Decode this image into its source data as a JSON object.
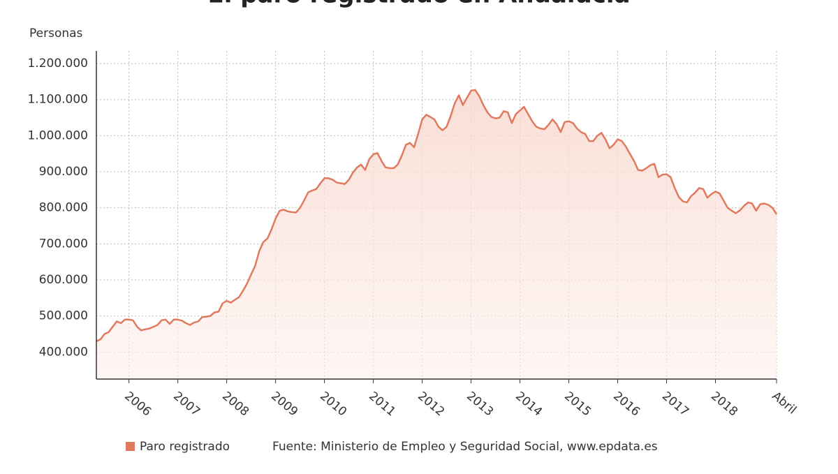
{
  "chart_data": {
    "type": "line",
    "title": "El paro registrado en Andalucía",
    "y_axis_title": "Personas",
    "source": "Fuente: Ministerio de Empleo y Seguridad Social, www.epdata.es",
    "categories": [
      null,
      null,
      null,
      null,
      null,
      null,
      null,
      null,
      "2006",
      null,
      null,
      null,
      null,
      null,
      null,
      null,
      null,
      null,
      null,
      null,
      "2007",
      null,
      null,
      null,
      null,
      null,
      null,
      null,
      null,
      null,
      null,
      null,
      "2008",
      null,
      null,
      null,
      null,
      null,
      null,
      null,
      null,
      null,
      null,
      null,
      "2009",
      null,
      null,
      null,
      null,
      null,
      null,
      null,
      null,
      null,
      null,
      null,
      "2010",
      null,
      null,
      null,
      null,
      null,
      null,
      null,
      null,
      null,
      null,
      null,
      "2011",
      null,
      null,
      null,
      null,
      null,
      null,
      null,
      null,
      null,
      null,
      null,
      "2012",
      null,
      null,
      null,
      null,
      null,
      null,
      null,
      null,
      null,
      null,
      null,
      "2013",
      null,
      null,
      null,
      null,
      null,
      null,
      null,
      null,
      null,
      null,
      null,
      "2014",
      null,
      null,
      null,
      null,
      null,
      null,
      null,
      null,
      null,
      null,
      null,
      "2015",
      null,
      null,
      null,
      null,
      null,
      null,
      null,
      null,
      null,
      null,
      null,
      "2016",
      null,
      null,
      null,
      null,
      null,
      null,
      null,
      null,
      null,
      null,
      null,
      "2017",
      null,
      null,
      null,
      null,
      null,
      null,
      null,
      null,
      null,
      null,
      null,
      "2018",
      null,
      null,
      null,
      null,
      null,
      null,
      null,
      null,
      null,
      null,
      null,
      null,
      null,
      null,
      "Abril"
    ],
    "series": [
      {
        "name": "Paro registrado",
        "color": "#e07a5f",
        "values": [
          430000,
          435000,
          450000,
          455000,
          470000,
          485000,
          480000,
          490000,
          490000,
          488000,
          470000,
          460000,
          463000,
          465000,
          470000,
          475000,
          488000,
          490000,
          478000,
          490000,
          490000,
          487000,
          480000,
          475000,
          482000,
          485000,
          497000,
          498000,
          500000,
          510000,
          512000,
          535000,
          542000,
          537000,
          545000,
          552000,
          570000,
          590000,
          615000,
          640000,
          680000,
          705000,
          715000,
          740000,
          770000,
          792000,
          795000,
          790000,
          788000,
          787000,
          800000,
          820000,
          843000,
          848000,
          852000,
          868000,
          882000,
          882000,
          878000,
          870000,
          868000,
          866000,
          878000,
          898000,
          912000,
          920000,
          905000,
          935000,
          948000,
          952000,
          930000,
          912000,
          910000,
          910000,
          920000,
          945000,
          975000,
          980000,
          968000,
          1005000,
          1045000,
          1058000,
          1052000,
          1045000,
          1025000,
          1015000,
          1025000,
          1055000,
          1090000,
          1112000,
          1085000,
          1105000,
          1125000,
          1127000,
          1110000,
          1085000,
          1065000,
          1052000,
          1048000,
          1050000,
          1068000,
          1065000,
          1035000,
          1060000,
          1070000,
          1080000,
          1060000,
          1040000,
          1025000,
          1020000,
          1018000,
          1030000,
          1045000,
          1032000,
          1010000,
          1038000,
          1040000,
          1035000,
          1020000,
          1010000,
          1005000,
          985000,
          985000,
          1000000,
          1008000,
          990000,
          965000,
          975000,
          990000,
          985000,
          970000,
          950000,
          930000,
          905000,
          903000,
          910000,
          918000,
          922000,
          885000,
          892000,
          893000,
          885000,
          855000,
          830000,
          818000,
          815000,
          832000,
          842000,
          855000,
          852000,
          828000,
          838000,
          845000,
          840000,
          820000,
          800000,
          792000,
          785000,
          793000,
          805000,
          815000,
          812000,
          792000,
          810000,
          812000,
          808000,
          800000,
          782000
        ]
      }
    ],
    "ylim": [
      325000,
      1235000
    ],
    "yticks": [
      {
        "value": 400000,
        "label": "400.000"
      },
      {
        "value": 500000,
        "label": "500.000"
      },
      {
        "value": 600000,
        "label": "600.000"
      },
      {
        "value": 700000,
        "label": "700.000"
      },
      {
        "value": 800000,
        "label": "800.000"
      },
      {
        "value": 900000,
        "label": "900.000"
      },
      {
        "value": 1000000,
        "label": "1.000.000"
      },
      {
        "value": 1100000,
        "label": "1.100.000"
      },
      {
        "value": 1200000,
        "label": "1.200.000"
      }
    ],
    "grid": true
  }
}
